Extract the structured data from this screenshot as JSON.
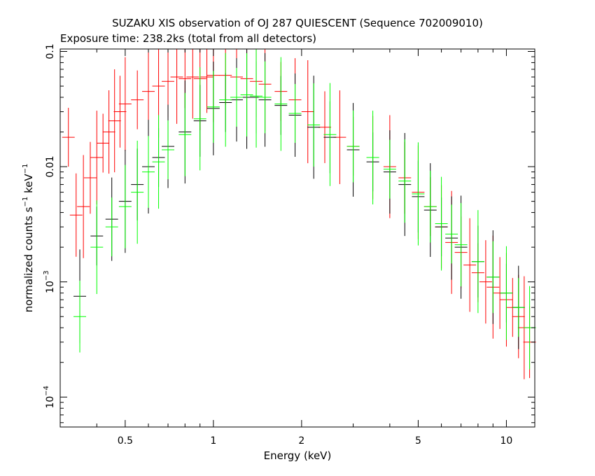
{
  "chart_data": {
    "type": "scatter",
    "title": "SUZAKU XIS observation of OJ 287 QUIESCENT (Sequence 702009010)",
    "subtitle": "Exposure time: 238.2ks (total from all detectors)",
    "xlabel": "Energy (keV)",
    "ylabel": {
      "base": "normalized counts s",
      "exp1": "−1",
      "mid": " keV",
      "exp2": "−1"
    },
    "xscale": "log",
    "yscale": "log",
    "xlim": [
      0.3,
      12.5
    ],
    "ylim": [
      5.5e-05,
      0.105
    ],
    "x_ticks": [
      {
        "value": 0.5,
        "label": "0.5"
      },
      {
        "value": 1,
        "label": "1"
      },
      {
        "value": 2,
        "label": "2"
      },
      {
        "value": 5,
        "label": "5"
      },
      {
        "value": 10,
        "label": "10"
      }
    ],
    "y_ticks": [
      {
        "value": 0.1,
        "text": "0.1"
      },
      {
        "value": 0.01,
        "text": "0.01"
      },
      {
        "value": 0.001,
        "base": "10",
        "exp": "−3"
      },
      {
        "value": 0.0001,
        "base": "10",
        "exp": "−4"
      }
    ],
    "series": [
      {
        "color": "#ff0000",
        "points": [
          [
            0.32,
            0.018
          ],
          [
            0.34,
            0.0038
          ],
          [
            0.36,
            0.0045
          ],
          [
            0.38,
            0.008
          ],
          [
            0.4,
            0.012
          ],
          [
            0.42,
            0.016
          ],
          [
            0.44,
            0.02
          ],
          [
            0.46,
            0.025
          ],
          [
            0.48,
            0.03
          ],
          [
            0.5,
            0.035
          ],
          [
            0.55,
            0.038
          ],
          [
            0.6,
            0.045
          ],
          [
            0.65,
            0.05
          ],
          [
            0.7,
            0.055
          ],
          [
            0.75,
            0.06
          ],
          [
            0.8,
            0.058
          ],
          [
            0.85,
            0.06
          ],
          [
            0.9,
            0.058
          ],
          [
            0.95,
            0.06
          ],
          [
            1.0,
            0.062
          ],
          [
            1.1,
            0.062
          ],
          [
            1.2,
            0.06
          ],
          [
            1.3,
            0.058
          ],
          [
            1.4,
            0.055
          ],
          [
            1.5,
            0.052
          ],
          [
            1.7,
            0.045
          ],
          [
            1.9,
            0.038
          ],
          [
            2.1,
            0.03
          ],
          [
            2.4,
            0.022
          ],
          [
            2.7,
            0.018
          ],
          [
            3.0,
            0.015
          ],
          [
            3.5,
            0.012
          ],
          [
            4.0,
            0.01
          ],
          [
            4.5,
            0.008
          ],
          [
            5.0,
            0.006
          ],
          [
            5.5,
            0.0045
          ],
          [
            6.0,
            0.003
          ],
          [
            6.5,
            0.0022
          ],
          [
            7.0,
            0.0018
          ],
          [
            7.5,
            0.0014
          ],
          [
            8.0,
            0.0012
          ],
          [
            8.5,
            0.001
          ],
          [
            9.0,
            0.0009
          ],
          [
            9.5,
            0.0008
          ],
          [
            10.0,
            0.0007
          ],
          [
            10.5,
            0.0006
          ],
          [
            11.0,
            0.0005
          ],
          [
            11.5,
            0.0004
          ],
          [
            12.0,
            0.0003
          ]
        ]
      },
      {
        "color": "#000000",
        "points": [
          [
            0.35,
            0.00075
          ],
          [
            0.4,
            0.0025
          ],
          [
            0.45,
            0.0035
          ],
          [
            0.5,
            0.005
          ],
          [
            0.55,
            0.007
          ],
          [
            0.6,
            0.01
          ],
          [
            0.65,
            0.012
          ],
          [
            0.7,
            0.015
          ],
          [
            0.8,
            0.02
          ],
          [
            0.9,
            0.025
          ],
          [
            1.0,
            0.032
          ],
          [
            1.1,
            0.036
          ],
          [
            1.2,
            0.038
          ],
          [
            1.3,
            0.04
          ],
          [
            1.4,
            0.04
          ],
          [
            1.5,
            0.038
          ],
          [
            1.7,
            0.034
          ],
          [
            1.9,
            0.028
          ],
          [
            2.2,
            0.022
          ],
          [
            2.5,
            0.018
          ],
          [
            3.0,
            0.014
          ],
          [
            3.5,
            0.011
          ],
          [
            4.0,
            0.009
          ],
          [
            4.5,
            0.007
          ],
          [
            5.0,
            0.0055
          ],
          [
            5.5,
            0.0042
          ],
          [
            6.0,
            0.003
          ],
          [
            6.5,
            0.0024
          ],
          [
            7.0,
            0.002
          ],
          [
            8.0,
            0.0015
          ],
          [
            9.0,
            0.0011
          ],
          [
            10.0,
            0.0008
          ],
          [
            11.0,
            0.0006
          ]
        ]
      },
      {
        "color": "#00ff00",
        "points": [
          [
            0.35,
            0.0005
          ],
          [
            0.4,
            0.002
          ],
          [
            0.45,
            0.003
          ],
          [
            0.5,
            0.0045
          ],
          [
            0.55,
            0.006
          ],
          [
            0.6,
            0.009
          ],
          [
            0.65,
            0.011
          ],
          [
            0.7,
            0.014
          ],
          [
            0.8,
            0.019
          ],
          [
            0.9,
            0.026
          ],
          [
            1.0,
            0.033
          ],
          [
            1.1,
            0.038
          ],
          [
            1.2,
            0.04
          ],
          [
            1.3,
            0.042
          ],
          [
            1.4,
            0.041
          ],
          [
            1.5,
            0.04
          ],
          [
            1.7,
            0.035
          ],
          [
            1.9,
            0.029
          ],
          [
            2.2,
            0.023
          ],
          [
            2.5,
            0.019
          ],
          [
            3.0,
            0.015
          ],
          [
            3.5,
            0.012
          ],
          [
            4.0,
            0.0095
          ],
          [
            4.5,
            0.0075
          ],
          [
            5.0,
            0.0058
          ],
          [
            5.5,
            0.0045
          ],
          [
            6.0,
            0.0032
          ],
          [
            6.5,
            0.0026
          ],
          [
            7.0,
            0.0021
          ],
          [
            8.0,
            0.0015
          ],
          [
            9.0,
            0.0011
          ],
          [
            10.0,
            0.0008
          ],
          [
            11.0,
            0.0006
          ],
          [
            12.0,
            0.0004
          ]
        ]
      }
    ]
  }
}
